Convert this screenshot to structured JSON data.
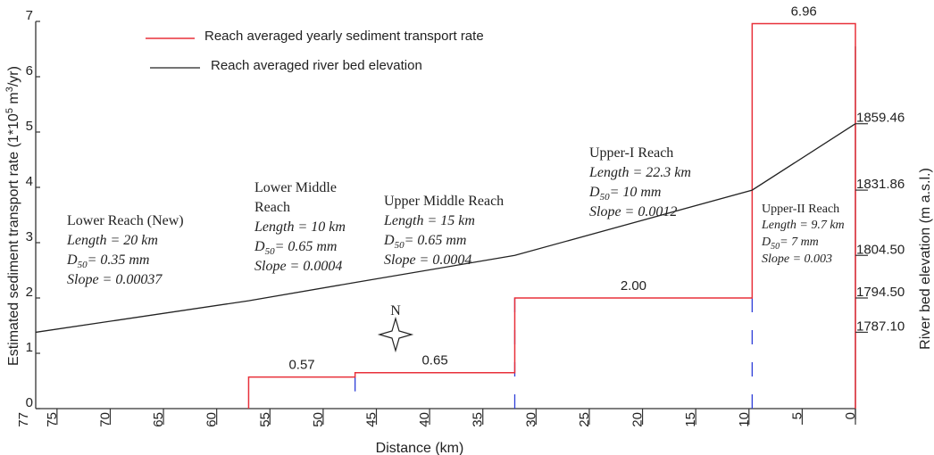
{
  "chart_data": {
    "type": "line",
    "xlabel": "Distance (km)",
    "ylabel": "Estimated sediment transport rate (1*10^5 m^3/yr)",
    "y2label": "River bed elevation (m a.s.l.)",
    "xlim": [
      77,
      0
    ],
    "ylim": [
      0,
      7
    ],
    "x_ticks": [
      75,
      70,
      65,
      60,
      55,
      50,
      45,
      40,
      35,
      30,
      25,
      20,
      15,
      10,
      5,
      0
    ],
    "x_extra_label": "77",
    "y_ticks": [
      0,
      1,
      2,
      3,
      4,
      5,
      6,
      7
    ],
    "legend": [
      {
        "name": "Reach averaged yearly sediment transport rate",
        "color": "#e8303a"
      },
      {
        "name": "Reach averaged river bed elevation",
        "color": "#222222"
      }
    ],
    "sediment_series": {
      "name": "Reach averaged yearly sediment transport rate",
      "color": "#e8303a",
      "steps": [
        {
          "x_start": 57,
          "x_end": 47,
          "value": 0.57,
          "label": "0.57"
        },
        {
          "x_start": 47,
          "x_end": 32,
          "value": 0.65,
          "label": "0.65"
        },
        {
          "x_start": 32,
          "x_end": 9.7,
          "value": 2.0,
          "label": "2.00"
        },
        {
          "x_start": 9.7,
          "x_end": 0,
          "value": 6.96,
          "label": "6.96"
        }
      ]
    },
    "elevation_series": {
      "name": "Reach averaged river bed elevation",
      "color": "#222222",
      "points": [
        {
          "x": 77,
          "y": 1.38
        },
        {
          "x": 57,
          "y": 1.95
        },
        {
          "x": 47,
          "y": 2.28
        },
        {
          "x": 32,
          "y": 2.77
        },
        {
          "x": 9.7,
          "y": 3.95
        },
        {
          "x": 0,
          "y": 5.15
        }
      ]
    },
    "boundaries": [
      {
        "x": 47,
        "y_top": 0.57
      },
      {
        "x": 32,
        "y_top": 2.0
      },
      {
        "x": 9.7,
        "y_top": 2.0
      }
    ],
    "elevation_labels": [
      {
        "text": "1859.46",
        "y": 5.15
      },
      {
        "text": "1831.86",
        "y": 3.95
      },
      {
        "text": "1804.50",
        "y": 2.77
      },
      {
        "text": "1794.50",
        "y": 2.0
      },
      {
        "text": "1787.10",
        "y": 1.38
      }
    ],
    "reach_annotations": [
      {
        "id": "lower",
        "lines": [
          "Lower Reach (New)"
        ],
        "length": "Length = 20 km",
        "d50_value": "= 0.35 mm",
        "slope": "Slope = 0.00037"
      },
      {
        "id": "lower-middle",
        "lines": [
          "Lower Middle",
          "Reach"
        ],
        "length": "Length = 10 km",
        "d50_value": "= 0.65 mm",
        "slope": "Slope = 0.0004"
      },
      {
        "id": "upper-middle",
        "lines": [
          "Upper Middle Reach"
        ],
        "length": "Length = 15 km",
        "d50_value": "= 0.65 mm",
        "slope": "Slope = 0.0004"
      },
      {
        "id": "upper-1",
        "lines": [
          "Upper-I Reach"
        ],
        "length": "Length = 22.3 km",
        "d50_value": "= 10 mm",
        "slope": "Slope = 0.0012"
      },
      {
        "id": "upper-2",
        "lines": [
          "Upper-II Reach"
        ],
        "length": "Length = 9.7 km",
        "d50_value": "= 7 mm",
        "slope": "Slope = 0.003"
      }
    ],
    "north_label": "N"
  }
}
